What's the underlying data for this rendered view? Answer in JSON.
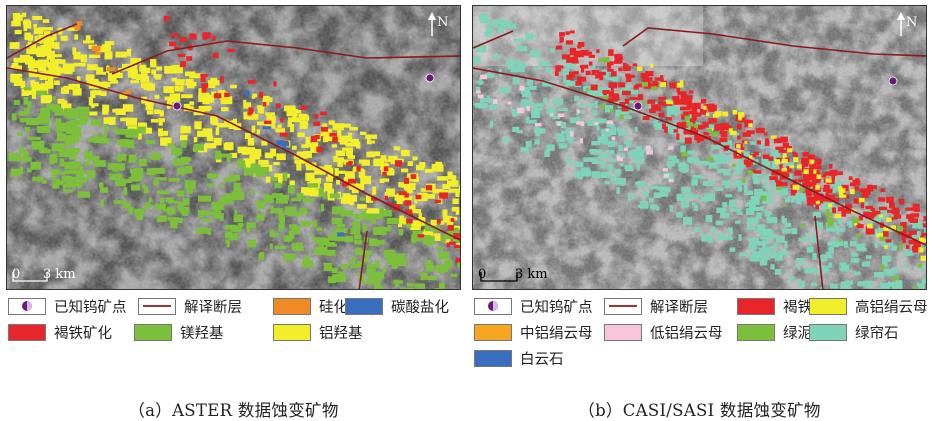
{
  "panels": [
    {
      "caption": "（a）ASTER 数据蚀变矿物",
      "north": "N",
      "scale_zero": "0",
      "scale_label": "3 km",
      "legend": [
        {
          "label": "已知钨矿点",
          "color": "#6a1a7a",
          "kind": "point"
        },
        {
          "label": "解译断层",
          "color": "#8b1a1a",
          "kind": "line"
        },
        {
          "label": "硅化",
          "color": "#f08a24",
          "kind": "fill"
        },
        {
          "label": "碳酸盐化",
          "color": "#3a6fbf",
          "kind": "fill"
        },
        {
          "label": "褐铁矿化",
          "color": "#e8262a",
          "kind": "fill"
        },
        {
          "label": "镁羟基",
          "color": "#7cbf3a",
          "kind": "fill"
        },
        {
          "label": "铝羟基",
          "color": "#f2ee2a",
          "kind": "fill"
        }
      ]
    },
    {
      "caption": "（b）CASI/SASI 数据蚀变矿物",
      "north": "N",
      "scale_zero": "0",
      "scale_label": "3 km",
      "legend": [
        {
          "label": "已知钨矿点",
          "color": "#6a1a7a",
          "kind": "point"
        },
        {
          "label": "解译断层",
          "color": "#8b1a1a",
          "kind": "line"
        },
        {
          "label": "褐铁矿",
          "color": "#e8262a",
          "kind": "fill"
        },
        {
          "label": "高铝绢云母",
          "color": "#f2ee2a",
          "kind": "fill"
        },
        {
          "label": "中铝绢云母",
          "color": "#f5a623",
          "kind": "fill"
        },
        {
          "label": "低铝绢云母",
          "color": "#f7c6dc",
          "kind": "fill"
        },
        {
          "label": "绿泥石",
          "color": "#7cbf3a",
          "kind": "fill"
        },
        {
          "label": "绿帘石",
          "color": "#7ed3b8",
          "kind": "fill"
        },
        {
          "label": "白云石",
          "color": "#3a6fbf",
          "kind": "fill"
        }
      ]
    }
  ]
}
